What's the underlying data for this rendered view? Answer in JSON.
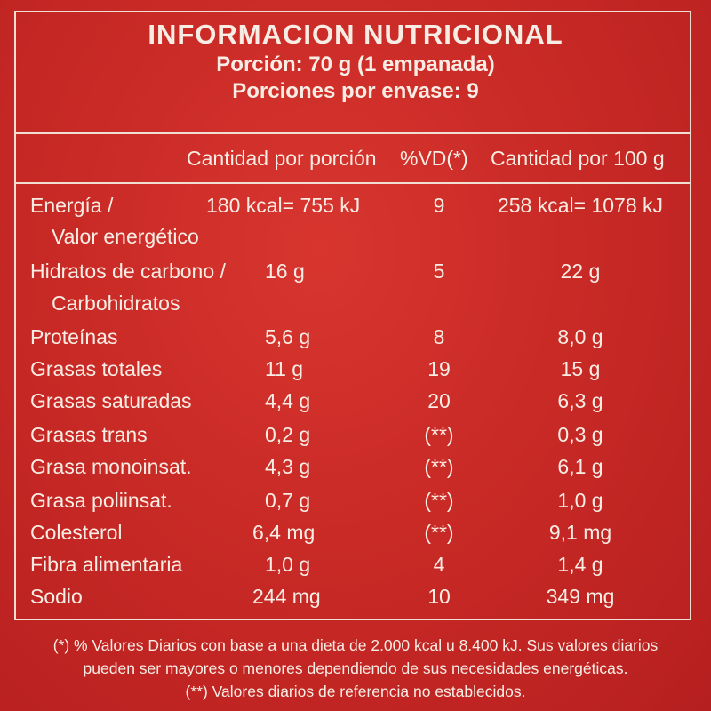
{
  "header": {
    "title": "INFORMACION NUTRICIONAL",
    "portion": "Porción: 70 g (1 empanada)",
    "portions_per_pack": "Porciones por envase: 9"
  },
  "columns": {
    "per_portion": "Cantidad por porción",
    "vd": "%VD(*)",
    "per_100g": "Cantidad por 100 g"
  },
  "rows": [
    {
      "name": "Energía /",
      "name2": "Valor energético",
      "per_portion": "180 kcal= 755 kJ",
      "vd": "9",
      "per_100g": "258 kcal= 1078 kJ"
    },
    {
      "name": "Hidratos de carbono /",
      "name2": "Carbohidratos",
      "per_portion": "16 g",
      "vd": "5",
      "per_100g": "22 g"
    },
    {
      "name": "Proteínas",
      "per_portion": "5,6 g",
      "vd": "8",
      "per_100g": "8,0 g"
    },
    {
      "name": "Grasas totales",
      "per_portion": "11 g",
      "vd": "19",
      "per_100g": "15 g"
    },
    {
      "name": "Grasas saturadas",
      "per_portion": "4,4 g",
      "vd": "20",
      "per_100g": "6,3 g"
    },
    {
      "name": "Grasas trans",
      "per_portion": "0,2 g",
      "vd": "(**)",
      "per_100g": "0,3 g"
    },
    {
      "name": "Grasa monoinsat.",
      "per_portion": "4,3 g",
      "vd": "(**)",
      "per_100g": "6,1 g"
    },
    {
      "name": "Grasa poliinsat.",
      "per_portion": "0,7 g",
      "vd": "(**)",
      "per_100g": "1,0 g"
    },
    {
      "name": "Colesterol",
      "per_portion": "6,4 mg",
      "vd": "(**)",
      "per_100g": "9,1 mg"
    },
    {
      "name": "Fibra alimentaria",
      "per_portion": "1,0 g",
      "vd": "4",
      "per_100g": "1,4 g"
    },
    {
      "name": "Sodio",
      "per_portion": "244 mg",
      "vd": "10",
      "per_100g": "349 mg"
    }
  ],
  "footnotes": {
    "line1": "(*) % Valores Diarios con base a una dieta de 2.000 kcal u 8.400 kJ. Sus valores diarios",
    "line2": "pueden ser mayores o menores dependiendo de sus necesidades energéticas.",
    "line3": "(**) Valores diarios de referencia no establecidos."
  },
  "colors": {
    "background": "#c92a26",
    "text": "#f8ede4"
  }
}
